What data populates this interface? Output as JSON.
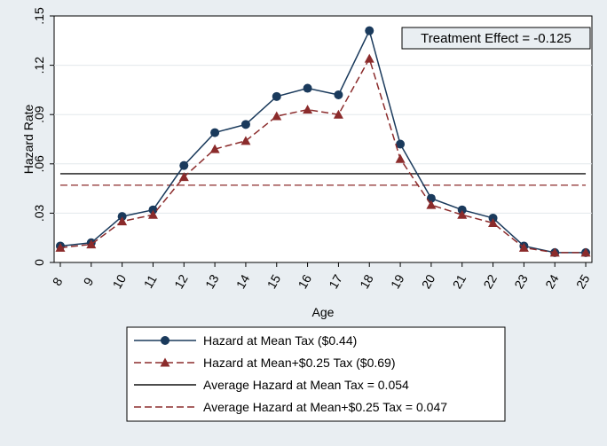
{
  "chart_data": {
    "type": "line",
    "xlabel": "Age",
    "ylabel": "Hazard Rate",
    "x": [
      8,
      9,
      10,
      11,
      12,
      13,
      14,
      15,
      16,
      17,
      18,
      19,
      20,
      21,
      22,
      23,
      24,
      25
    ],
    "xlim": [
      7.8,
      25.2
    ],
    "ylim": [
      0,
      0.15
    ],
    "yticks": [
      0,
      0.03,
      0.06,
      0.09,
      0.12,
      0.15
    ],
    "ytick_labels": [
      "0",
      ".03",
      ".06",
      ".09",
      ".12",
      ".15"
    ],
    "grid": "horizontal",
    "annotation": "Treatment Effect = -0.125",
    "series": [
      {
        "name": "Hazard at Mean Tax ($0.44)",
        "style": "solid-circle",
        "color": "#1a3a5c",
        "values": [
          0.01,
          0.012,
          0.028,
          0.032,
          0.059,
          0.079,
          0.084,
          0.101,
          0.106,
          0.102,
          0.141,
          0.072,
          0.039,
          0.032,
          0.027,
          0.01,
          0.006,
          0.006
        ]
      },
      {
        "name": "Hazard at Mean+$0.25 Tax ($0.69)",
        "style": "dashed-triangle",
        "color": "#8b2b2b",
        "values": [
          0.009,
          0.011,
          0.025,
          0.029,
          0.052,
          0.069,
          0.074,
          0.089,
          0.093,
          0.09,
          0.124,
          0.063,
          0.035,
          0.029,
          0.024,
          0.009,
          0.006,
          0.006
        ]
      }
    ],
    "reference_lines": [
      {
        "name": "Average Hazard at Mean Tax = 0.054",
        "value": 0.054,
        "style": "solid",
        "color": "#111111"
      },
      {
        "name": "Average Hazard at Mean+$0.25 Tax = 0.047",
        "value": 0.047,
        "style": "dashed",
        "color": "#8b2b2b"
      }
    ],
    "legend_position": "bottom"
  }
}
